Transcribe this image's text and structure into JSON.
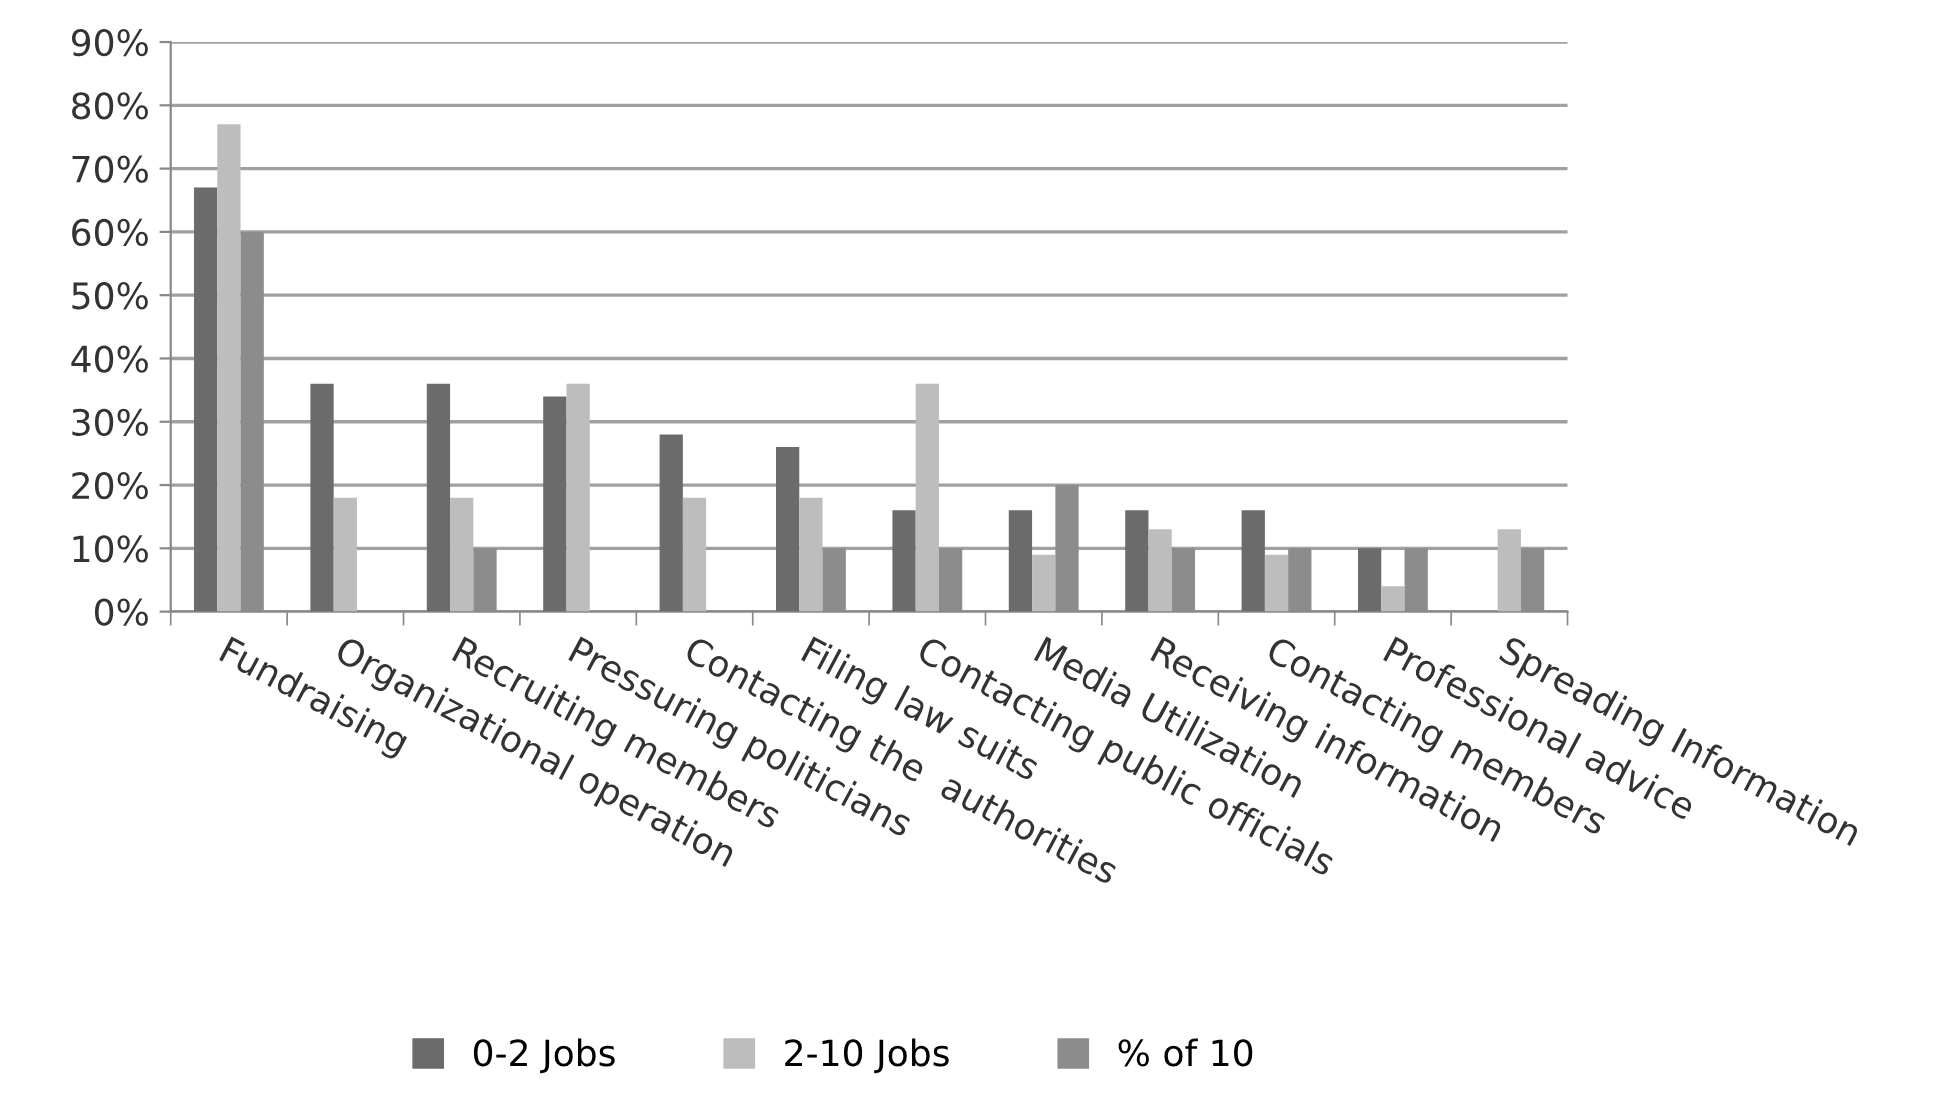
{
  "chart_data": {
    "type": "bar",
    "categories": [
      "Fundraising",
      "Organizational operation",
      "Recruiting members",
      "Pressuring politicians",
      "Contacting the  authorities",
      "Filing law suits",
      "Contacting public officials",
      "Media Utilization",
      "Receiving information",
      "Contacting members",
      "Professional advice",
      "Spreading Information"
    ],
    "series": [
      {
        "name": "0-2 Jobs",
        "color": "#6b6b6b",
        "values": [
          67,
          36,
          36,
          34,
          28,
          26,
          16,
          16,
          16,
          16,
          10,
          null
        ]
      },
      {
        "name": "2-10 Jobs",
        "color": "#bdbdbd",
        "values": [
          77,
          18,
          18,
          36,
          18,
          18,
          36,
          9,
          13,
          9,
          4,
          13
        ]
      },
      {
        "name": "% of 10",
        "color": "#8c8c8c",
        "values": [
          60,
          null,
          10,
          null,
          null,
          10,
          10,
          20,
          10,
          10,
          10,
          10
        ]
      }
    ],
    "ylim": [
      0,
      90
    ],
    "yticks": [
      {
        "value": 0,
        "label": "0%"
      },
      {
        "value": 10,
        "label": "10%"
      },
      {
        "value": 20,
        "label": "20%"
      },
      {
        "value": 30,
        "label": "30%"
      },
      {
        "value": 40,
        "label": "40%"
      },
      {
        "value": 50,
        "label": "50%"
      },
      {
        "value": 60,
        "label": "60%"
      },
      {
        "value": 70,
        "label": "70%"
      },
      {
        "value": 80,
        "label": "80%"
      },
      {
        "value": 90,
        "label": "90%"
      }
    ],
    "grid": "y",
    "legend": "bottom"
  }
}
